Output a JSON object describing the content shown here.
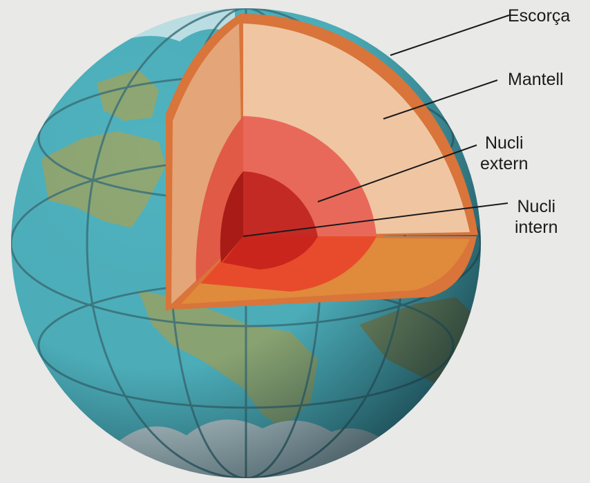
{
  "labels": {
    "crust": "Escorça",
    "mantle": "Mantell",
    "outer_core_line1": "Nucli",
    "outer_core_line2": "extern",
    "inner_core_line1": "Nucli",
    "inner_core_line2": "intern"
  },
  "colors": {
    "background": "#e9e9e7",
    "ocean": "#4fb3bf",
    "land": "#8fa874",
    "crust": "#d9743a",
    "mantle": "#f0c5a2",
    "outer_core": "#e8695a",
    "inner_core": "#b71f1a",
    "leader_line": "#1a1a1a"
  }
}
